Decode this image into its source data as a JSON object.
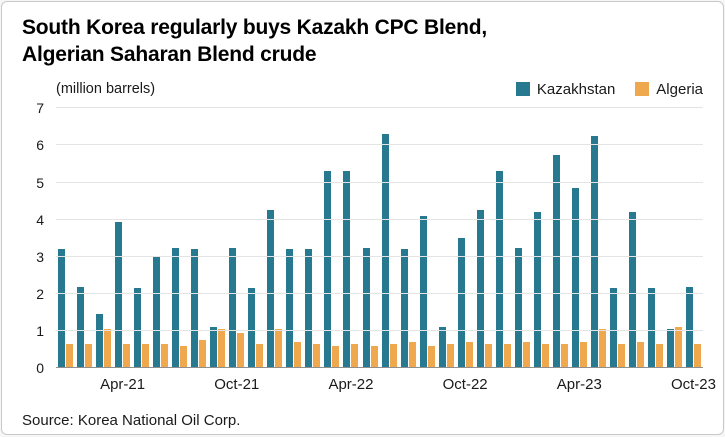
{
  "header": {
    "title_line1": "South Korea regularly buys Kazakh CPC Blend,",
    "title_line2": "Algerian Saharan Blend crude"
  },
  "chart_data": {
    "type": "bar",
    "title": "South Korea regularly buys Kazakh CPC Blend, Algerian Saharan Blend crude",
    "unit_label": "(million barrels)",
    "xlabel": "",
    "ylabel": "million barrels",
    "ylim": [
      0,
      7
    ],
    "yticks": [
      0,
      1,
      2,
      3,
      4,
      5,
      6,
      7
    ],
    "grid": true,
    "legend_position": "top-right",
    "categories": [
      "Jan-21",
      "Feb-21",
      "Mar-21",
      "Apr-21",
      "May-21",
      "Jun-21",
      "Jul-21",
      "Aug-21",
      "Sep-21",
      "Oct-21",
      "Nov-21",
      "Dec-21",
      "Jan-22",
      "Feb-22",
      "Mar-22",
      "Apr-22",
      "May-22",
      "Jun-22",
      "Jul-22",
      "Aug-22",
      "Sep-22",
      "Oct-22",
      "Nov-22",
      "Dec-22",
      "Jan-23",
      "Feb-23",
      "Mar-23",
      "Apr-23",
      "May-23",
      "Jun-23",
      "Jul-23",
      "Aug-23",
      "Sep-23",
      "Oct-23"
    ],
    "xticks": [
      "Apr-21",
      "Oct-21",
      "Apr-22",
      "Oct-22",
      "Apr-23",
      "Oct-23"
    ],
    "series": [
      {
        "name": "Kazakhstan",
        "color": "#27798f",
        "values": [
          3.2,
          2.2,
          1.45,
          3.95,
          2.15,
          3.0,
          3.25,
          3.2,
          1.1,
          3.25,
          2.15,
          4.25,
          3.2,
          3.2,
          5.3,
          5.3,
          3.25,
          6.3,
          3.2,
          4.1,
          1.1,
          3.5,
          4.25,
          5.3,
          3.25,
          4.2,
          5.75,
          4.85,
          6.25,
          2.15,
          4.2,
          2.15,
          1.05,
          2.2
        ]
      },
      {
        "name": "Algeria",
        "color": "#f0a84e",
        "values": [
          0.65,
          0.65,
          1.05,
          0.65,
          0.65,
          0.65,
          0.6,
          0.75,
          1.05,
          0.95,
          0.65,
          1.05,
          0.7,
          0.65,
          0.6,
          0.65,
          0.6,
          0.65,
          0.7,
          0.6,
          0.65,
          0.7,
          0.65,
          0.65,
          0.7,
          0.65,
          0.65,
          0.7,
          1.05,
          0.65,
          0.7,
          0.65,
          1.1,
          0.65
        ]
      }
    ]
  },
  "footer": {
    "source": "Source: Korea National Oil Corp."
  }
}
